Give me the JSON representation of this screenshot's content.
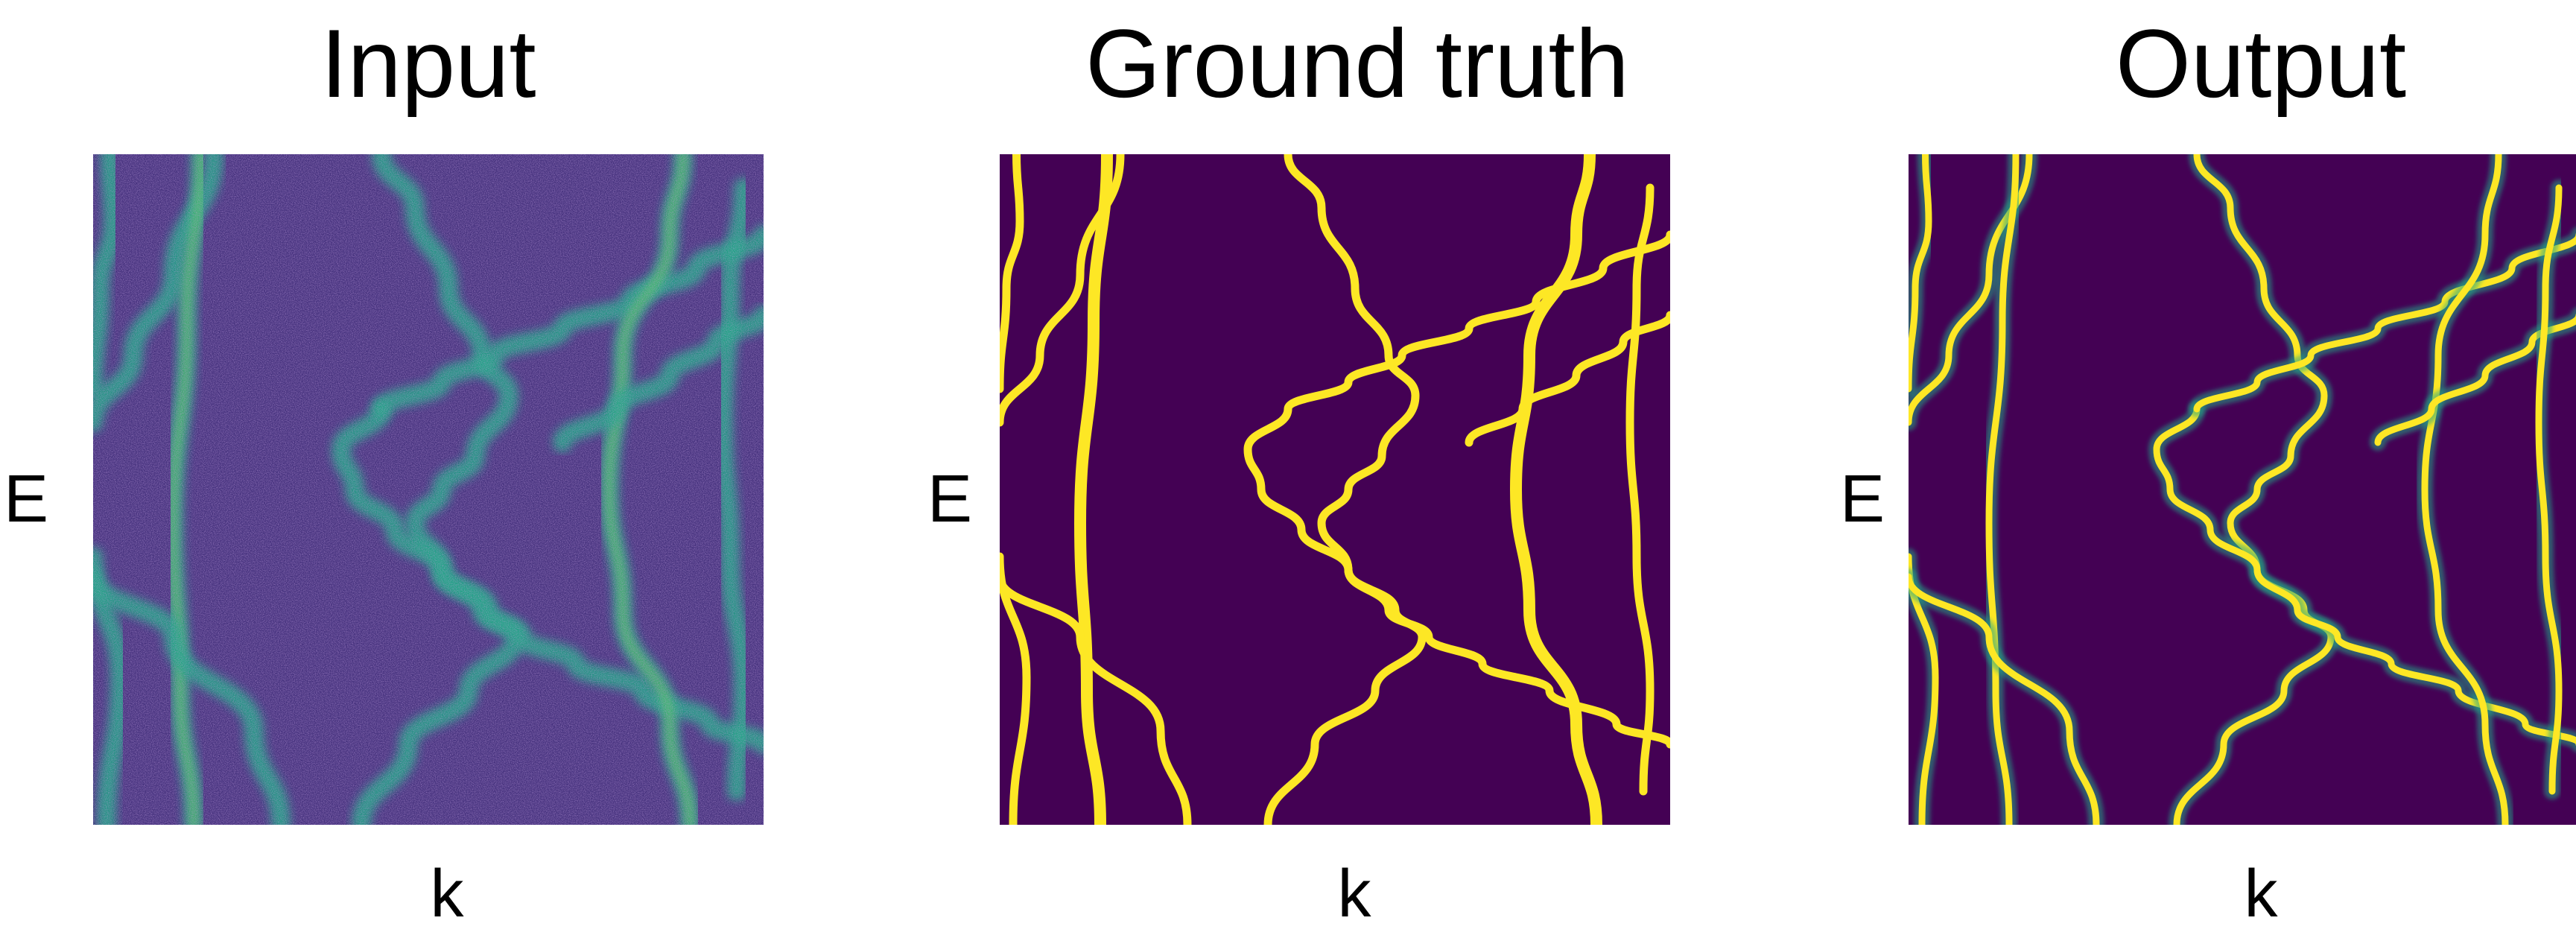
{
  "chart_data": [
    {
      "type": "heatmap",
      "title": "Input",
      "xlabel": "k",
      "ylabel": "E",
      "style": "noisy",
      "colormap": "viridis",
      "background_color": "#46327e",
      "band_color": "#21a585",
      "hotspot_color": "#7ad151"
    },
    {
      "type": "heatmap",
      "title": "Ground truth",
      "xlabel": "k",
      "ylabel": "E",
      "style": "binary",
      "colormap": "viridis",
      "background_color": "#440154",
      "band_color": "#fde725"
    },
    {
      "type": "heatmap",
      "title": "Output",
      "xlabel": "k",
      "ylabel": "E",
      "style": "prediction",
      "colormap": "viridis",
      "background_color": "#440154",
      "band_color": "#fde725",
      "halo_color": "#21a585"
    }
  ]
}
